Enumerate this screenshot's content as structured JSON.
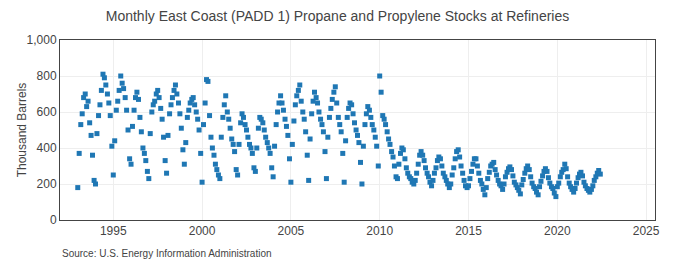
{
  "chart_data": {
    "type": "scatter",
    "title": "Monthly East Coast (PADD 1) Propane and Propylene Stocks at Refineries",
    "ylabel": "Thousand Barrels",
    "annotations": [
      "Source: U.S. Energy Information Administration"
    ],
    "marker": "square",
    "grid": true,
    "xlim": [
      1992.0,
      2025.5
    ],
    "xticks": [
      1995,
      2000,
      2005,
      2010,
      2015,
      2020,
      2025
    ],
    "ylim": [
      0,
      1000
    ],
    "yticks": [
      0,
      200,
      400,
      600,
      800,
      {
        "value": 1000,
        "label": "1,000"
      }
    ],
    "x": [
      1993.0,
      1993.08,
      1993.17,
      1993.25,
      1993.33,
      1993.42,
      1993.5,
      1993.58,
      1993.67,
      1993.75,
      1993.83,
      1993.92,
      1994.0,
      1994.08,
      1994.17,
      1994.25,
      1994.33,
      1994.42,
      1994.5,
      1994.58,
      1994.67,
      1994.75,
      1994.83,
      1994.92,
      1995.0,
      1995.08,
      1995.17,
      1995.25,
      1995.33,
      1995.42,
      1995.5,
      1995.58,
      1995.67,
      1995.75,
      1995.83,
      1995.92,
      1996.0,
      1996.08,
      1996.17,
      1996.25,
      1996.33,
      1996.42,
      1996.5,
      1996.58,
      1996.67,
      1996.75,
      1996.83,
      1996.92,
      1997.0,
      1997.08,
      1997.17,
      1997.25,
      1997.33,
      1997.42,
      1997.5,
      1997.58,
      1997.67,
      1997.75,
      1997.83,
      1997.92,
      1998.0,
      1998.08,
      1998.17,
      1998.25,
      1998.33,
      1998.42,
      1998.5,
      1998.58,
      1998.67,
      1998.75,
      1998.83,
      1998.92,
      1999.0,
      1999.08,
      1999.17,
      1999.25,
      1999.33,
      1999.42,
      1999.5,
      1999.58,
      1999.67,
      1999.75,
      1999.83,
      1999.92,
      2000.0,
      2000.08,
      2000.17,
      2000.25,
      2000.33,
      2000.42,
      2000.5,
      2000.58,
      2000.67,
      2000.75,
      2000.83,
      2000.92,
      2001.0,
      2001.08,
      2001.17,
      2001.25,
      2001.33,
      2001.42,
      2001.5,
      2001.58,
      2001.67,
      2001.75,
      2001.83,
      2001.92,
      2002.0,
      2002.08,
      2002.17,
      2002.25,
      2002.33,
      2002.42,
      2002.5,
      2002.58,
      2002.67,
      2002.75,
      2002.83,
      2002.92,
      2003.0,
      2003.08,
      2003.17,
      2003.25,
      2003.33,
      2003.42,
      2003.5,
      2003.58,
      2003.67,
      2003.75,
      2003.83,
      2003.92,
      2004.0,
      2004.08,
      2004.17,
      2004.25,
      2004.33,
      2004.42,
      2004.5,
      2004.58,
      2004.67,
      2004.75,
      2004.83,
      2004.92,
      2005.0,
      2005.08,
      2005.17,
      2005.25,
      2005.33,
      2005.42,
      2005.5,
      2005.58,
      2005.67,
      2005.75,
      2005.83,
      2005.92,
      2006.0,
      2006.08,
      2006.17,
      2006.25,
      2006.33,
      2006.42,
      2006.5,
      2006.58,
      2006.67,
      2006.75,
      2006.83,
      2006.92,
      2007.0,
      2007.08,
      2007.17,
      2007.25,
      2007.33,
      2007.42,
      2007.5,
      2007.58,
      2007.67,
      2007.75,
      2007.83,
      2007.92,
      2008.0,
      2008.08,
      2008.17,
      2008.25,
      2008.33,
      2008.42,
      2008.5,
      2008.58,
      2008.67,
      2008.75,
      2008.83,
      2008.92,
      2009.0,
      2009.08,
      2009.17,
      2009.25,
      2009.33,
      2009.42,
      2009.5,
      2009.58,
      2009.67,
      2009.75,
      2009.83,
      2009.92,
      2010.0,
      2010.08,
      2010.17,
      2010.25,
      2010.33,
      2010.42,
      2010.5,
      2010.58,
      2010.67,
      2010.75,
      2010.83,
      2010.92,
      2011.0,
      2011.08,
      2011.17,
      2011.25,
      2011.33,
      2011.42,
      2011.5,
      2011.58,
      2011.67,
      2011.75,
      2011.83,
      2011.92,
      2012.0,
      2012.08,
      2012.17,
      2012.25,
      2012.33,
      2012.42,
      2012.5,
      2012.58,
      2012.67,
      2012.75,
      2012.83,
      2012.92,
      2013.0,
      2013.08,
      2013.17,
      2013.25,
      2013.33,
      2013.42,
      2013.5,
      2013.58,
      2013.67,
      2013.75,
      2013.83,
      2013.92,
      2014.0,
      2014.08,
      2014.17,
      2014.25,
      2014.33,
      2014.42,
      2014.5,
      2014.58,
      2014.67,
      2014.75,
      2014.83,
      2014.92,
      2015.0,
      2015.08,
      2015.17,
      2015.25,
      2015.33,
      2015.42,
      2015.5,
      2015.58,
      2015.67,
      2015.75,
      2015.83,
      2015.92,
      2016.0,
      2016.08,
      2016.17,
      2016.25,
      2016.33,
      2016.42,
      2016.5,
      2016.58,
      2016.67,
      2016.75,
      2016.83,
      2016.92,
      2017.0,
      2017.08,
      2017.17,
      2017.25,
      2017.33,
      2017.42,
      2017.5,
      2017.58,
      2017.67,
      2017.75,
      2017.83,
      2017.92,
      2018.0,
      2018.08,
      2018.17,
      2018.25,
      2018.33,
      2018.42,
      2018.5,
      2018.58,
      2018.67,
      2018.75,
      2018.83,
      2018.92,
      2019.0,
      2019.08,
      2019.17,
      2019.25,
      2019.33,
      2019.42,
      2019.5,
      2019.58,
      2019.67,
      2019.75,
      2019.83,
      2019.92,
      2020.0,
      2020.08,
      2020.17,
      2020.25,
      2020.33,
      2020.42,
      2020.5,
      2020.58,
      2020.67,
      2020.75,
      2020.83,
      2020.92,
      2021.0,
      2021.08,
      2021.17,
      2021.25,
      2021.33,
      2021.42,
      2021.5,
      2021.58,
      2021.67,
      2021.75,
      2021.83,
      2021.92,
      2022.0,
      2022.08,
      2022.17,
      2022.25,
      2022.33,
      2022.42
    ],
    "values": [
      180,
      370,
      530,
      590,
      680,
      700,
      630,
      660,
      540,
      470,
      360,
      220,
      200,
      480,
      580,
      640,
      720,
      810,
      790,
      750,
      700,
      650,
      580,
      410,
      250,
      440,
      610,
      660,
      720,
      800,
      760,
      730,
      680,
      610,
      500,
      340,
      310,
      520,
      610,
      680,
      710,
      670,
      570,
      490,
      400,
      370,
      330,
      270,
      230,
      480,
      600,
      640,
      660,
      700,
      720,
      680,
      620,
      560,
      460,
      330,
      260,
      470,
      590,
      640,
      680,
      720,
      750,
      700,
      650,
      590,
      510,
      390,
      310,
      430,
      570,
      610,
      650,
      670,
      680,
      640,
      600,
      560,
      500,
      370,
      210,
      530,
      650,
      780,
      770,
      580,
      460,
      400,
      360,
      310,
      280,
      250,
      230,
      460,
      570,
      640,
      690,
      600,
      560,
      510,
      450,
      420,
      380,
      280,
      250,
      420,
      540,
      590,
      570,
      530,
      500,
      460,
      420,
      400,
      370,
      290,
      270,
      400,
      510,
      570,
      560,
      540,
      500,
      460,
      430,
      400,
      370,
      290,
      240,
      410,
      530,
      600,
      650,
      690,
      650,
      610,
      560,
      520,
      470,
      340,
      210,
      420,
      550,
      640,
      690,
      720,
      750,
      660,
      600,
      560,
      490,
      360,
      220,
      450,
      590,
      660,
      710,
      680,
      650,
      600,
      560,
      530,
      490,
      380,
      230,
      460,
      570,
      620,
      670,
      710,
      740,
      650,
      570,
      530,
      490,
      370,
      210,
      440,
      570,
      620,
      650,
      640,
      590,
      540,
      500,
      470,
      430,
      320,
      200,
      410,
      530,
      590,
      630,
      610,
      570,
      530,
      500,
      460,
      410,
      300,
      800,
      710,
      580,
      560,
      530,
      490,
      450,
      420,
      380,
      350,
      300,
      240,
      230,
      310,
      370,
      400,
      390,
      340,
      290,
      260,
      240,
      230,
      210,
      200,
      220,
      260,
      310,
      360,
      380,
      360,
      330,
      290,
      260,
      240,
      210,
      190,
      220,
      260,
      290,
      330,
      350,
      340,
      300,
      260,
      240,
      220,
      200,
      180,
      200,
      250,
      290,
      340,
      380,
      390,
      350,
      300,
      260,
      220,
      190,
      180,
      190,
      230,
      270,
      310,
      340,
      340,
      300,
      260,
      220,
      200,
      170,
      140,
      180,
      230,
      265,
      300,
      310,
      320,
      280,
      250,
      220,
      200,
      190,
      170,
      200,
      240,
      265,
      285,
      295,
      280,
      245,
      210,
      195,
      180,
      165,
      145,
      195,
      225,
      260,
      285,
      300,
      280,
      240,
      205,
      185,
      175,
      155,
      140,
      185,
      215,
      245,
      270,
      285,
      270,
      235,
      205,
      185,
      175,
      150,
      130,
      185,
      205,
      240,
      265,
      280,
      310,
      285,
      240,
      205,
      185,
      170,
      155,
      175,
      205,
      235,
      255,
      265,
      245,
      210,
      190,
      175,
      165,
      155,
      170,
      190,
      220,
      240,
      260,
      275,
      255
    ]
  }
}
